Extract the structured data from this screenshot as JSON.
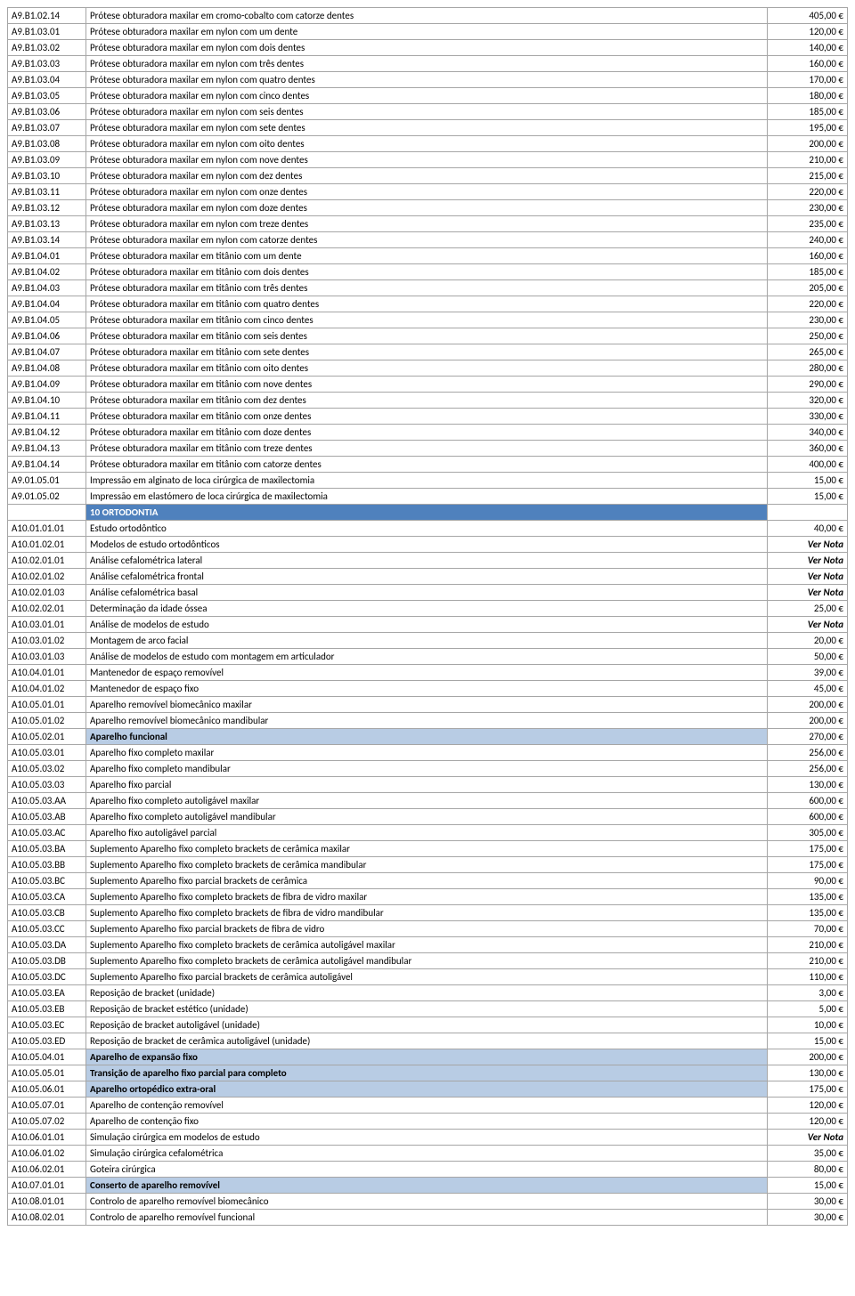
{
  "rows": [
    {
      "code": "A9.B1.02.14",
      "desc": "Prótese obturadora maxilar em cromo-cobalto com catorze dentes",
      "price": "405,00 €"
    },
    {
      "code": "A9.B1.03.01",
      "desc": "Prótese obturadora maxilar em nylon com um dente",
      "price": "120,00 €"
    },
    {
      "code": "A9.B1.03.02",
      "desc": "Prótese obturadora maxilar em nylon com dois dentes",
      "price": "140,00 €"
    },
    {
      "code": "A9.B1.03.03",
      "desc": "Prótese obturadora maxilar em nylon com três dentes",
      "price": "160,00 €"
    },
    {
      "code": "A9.B1.03.04",
      "desc": "Prótese obturadora maxilar em nylon com quatro dentes",
      "price": "170,00 €"
    },
    {
      "code": "A9.B1.03.05",
      "desc": "Prótese obturadora maxilar em nylon com cinco dentes",
      "price": "180,00 €"
    },
    {
      "code": "A9.B1.03.06",
      "desc": "Prótese obturadora maxilar em nylon com seis dentes",
      "price": "185,00 €"
    },
    {
      "code": "A9.B1.03.07",
      "desc": "Prótese obturadora maxilar em nylon com sete dentes",
      "price": "195,00 €"
    },
    {
      "code": "A9.B1.03.08",
      "desc": "Prótese obturadora maxilar em nylon com oito dentes",
      "price": "200,00 €"
    },
    {
      "code": "A9.B1.03.09",
      "desc": "Prótese obturadora maxilar em nylon com nove dentes",
      "price": "210,00 €"
    },
    {
      "code": "A9.B1.03.10",
      "desc": "Prótese obturadora maxilar em nylon com dez dentes",
      "price": "215,00 €"
    },
    {
      "code": "A9.B1.03.11",
      "desc": "Prótese obturadora maxilar em nylon com onze dentes",
      "price": "220,00 €"
    },
    {
      "code": "A9.B1.03.12",
      "desc": "Prótese obturadora maxilar em nylon com doze dentes",
      "price": "230,00 €"
    },
    {
      "code": "A9.B1.03.13",
      "desc": "Prótese obturadora maxilar em nylon com treze dentes",
      "price": "235,00 €"
    },
    {
      "code": "A9.B1.03.14",
      "desc": "Prótese obturadora maxilar em nylon com catorze dentes",
      "price": "240,00 €"
    },
    {
      "code": "A9.B1.04.01",
      "desc": "Prótese obturadora maxilar em titânio com um dente",
      "price": "160,00 €"
    },
    {
      "code": "A9.B1.04.02",
      "desc": "Prótese obturadora maxilar em titânio com dois dentes",
      "price": "185,00 €"
    },
    {
      "code": "A9.B1.04.03",
      "desc": "Prótese obturadora maxilar em titânio com três dentes",
      "price": "205,00 €"
    },
    {
      "code": "A9.B1.04.04",
      "desc": "Prótese obturadora maxilar em titânio com quatro dentes",
      "price": "220,00 €"
    },
    {
      "code": "A9.B1.04.05",
      "desc": "Prótese obturadora maxilar em titânio com cinco dentes",
      "price": "230,00 €"
    },
    {
      "code": "A9.B1.04.06",
      "desc": "Prótese obturadora maxilar em titânio com seis dentes",
      "price": "250,00 €"
    },
    {
      "code": "A9.B1.04.07",
      "desc": "Prótese obturadora maxilar em titânio com sete dentes",
      "price": "265,00 €"
    },
    {
      "code": "A9.B1.04.08",
      "desc": "Prótese obturadora maxilar em titânio com oito dentes",
      "price": "280,00 €"
    },
    {
      "code": "A9.B1.04.09",
      "desc": "Prótese obturadora maxilar em titânio com nove dentes",
      "price": "290,00 €"
    },
    {
      "code": "A9.B1.04.10",
      "desc": "Prótese obturadora maxilar em titânio com dez dentes",
      "price": "320,00 €"
    },
    {
      "code": "A9.B1.04.11",
      "desc": "Prótese obturadora maxilar em titânio com onze dentes",
      "price": "330,00 €"
    },
    {
      "code": "A9.B1.04.12",
      "desc": "Prótese obturadora maxilar em titânio com doze dentes",
      "price": "340,00 €"
    },
    {
      "code": "A9.B1.04.13",
      "desc": "Prótese obturadora maxilar em titânio com treze dentes",
      "price": "360,00 €"
    },
    {
      "code": "A9.B1.04.14",
      "desc": "Prótese obturadora maxilar em titânio com catorze dentes",
      "price": "400,00 €"
    },
    {
      "code": "A9.01.05.01",
      "desc": "Impressão em alginato de loca cirúrgica de maxilectomia",
      "price": "15,00 €"
    },
    {
      "code": "A9.01.05.02",
      "desc": "Impressão em elastómero de loca cirúrgica de maxilectomia",
      "price": "15,00 €"
    },
    {
      "code": "",
      "desc": "10 ORTODONTIA",
      "price": "",
      "type": "section"
    },
    {
      "code": "A10.01.01.01",
      "desc": "Estudo ortodôntico",
      "price": "40,00 €"
    },
    {
      "code": "A10.01.02.01",
      "desc": "Modelos de estudo ortodônticos",
      "price": "Ver Nota",
      "note": true
    },
    {
      "code": "A10.02.01.01",
      "desc": "Análise cefalométrica lateral",
      "price": "Ver Nota",
      "note": true
    },
    {
      "code": "A10.02.01.02",
      "desc": "Análise cefalométrica frontal",
      "price": "Ver Nota",
      "note": true
    },
    {
      "code": "A10.02.01.03",
      "desc": "Análise cefalométrica basal",
      "price": "Ver Nota",
      "note": true
    },
    {
      "code": "A10.02.02.01",
      "desc": "Determinação da idade óssea",
      "price": "25,00 €"
    },
    {
      "code": "A10.03.01.01",
      "desc": "Análise de modelos de estudo",
      "price": "Ver Nota",
      "note": true
    },
    {
      "code": "A10.03.01.02",
      "desc": "Montagem de arco facial",
      "price": "20,00 €"
    },
    {
      "code": "A10.03.01.03",
      "desc": "Análise de modelos de estudo com montagem em articulador",
      "price": "50,00 €"
    },
    {
      "code": "A10.04.01.01",
      "desc": "Mantenedor de espaço removível",
      "price": "39,00 €"
    },
    {
      "code": "A10.04.01.02",
      "desc": "Mantenedor de espaço fixo",
      "price": "45,00 €"
    },
    {
      "code": "A10.05.01.01",
      "desc": "Aparelho removível biomecânico maxilar",
      "price": "200,00 €"
    },
    {
      "code": "A10.05.01.02",
      "desc": "Aparelho removível biomecânico mandibular",
      "price": "200,00 €"
    },
    {
      "code": "A10.05.02.01",
      "desc": "Aparelho funcional",
      "price": "270,00 €",
      "hl": true
    },
    {
      "code": "A10.05.03.01",
      "desc": "Aparelho fixo completo maxilar",
      "price": "256,00 €"
    },
    {
      "code": "A10.05.03.02",
      "desc": "Aparelho fixo completo mandibular",
      "price": "256,00 €"
    },
    {
      "code": "A10.05.03.03",
      "desc": "Aparelho fixo parcial",
      "price": "130,00 €"
    },
    {
      "code": "A10.05.03.AA",
      "desc": "Aparelho fixo completo autoligável maxilar",
      "price": "600,00 €"
    },
    {
      "code": "A10.05.03.AB",
      "desc": "Aparelho fixo completo autoligável mandibular",
      "price": "600,00 €"
    },
    {
      "code": "A10.05.03.AC",
      "desc": "Aparelho fixo autoligável parcial",
      "price": "305,00 €"
    },
    {
      "code": "A10.05.03.BA",
      "desc": "Suplemento Aparelho fixo completo brackets de cerâmica maxilar",
      "price": "175,00 €"
    },
    {
      "code": "A10.05.03.BB",
      "desc": "Suplemento Aparelho fixo completo brackets de cerâmica mandibular",
      "price": "175,00 €"
    },
    {
      "code": "A10.05.03.BC",
      "desc": "Suplemento Aparelho fixo parcial brackets de cerâmica",
      "price": "90,00 €"
    },
    {
      "code": "A10.05.03.CA",
      "desc": "Suplemento Aparelho fixo completo  brackets de fibra de vidro maxilar",
      "price": "135,00 €"
    },
    {
      "code": "A10.05.03.CB",
      "desc": "Suplemento Aparelho fixo completo  brackets de fibra de vidro mandibular",
      "price": "135,00 €"
    },
    {
      "code": "A10.05.03.CC",
      "desc": "Suplemento Aparelho fixo parcial  brackets de fibra de vidro",
      "price": "70,00 €"
    },
    {
      "code": "A10.05.03.DA",
      "desc": "Suplemento Aparelho fixo completo brackets de cerâmica autoligável  maxilar",
      "price": "210,00 €"
    },
    {
      "code": "A10.05.03.DB",
      "desc": "Suplemento Aparelho fixo completo brackets de cerâmica autoligável  mandibular",
      "price": "210,00 €"
    },
    {
      "code": "A10.05.03.DC",
      "desc": "Suplemento Aparelho fixo parcial brackets de cerâmica autoligável",
      "price": "110,00 €"
    },
    {
      "code": "A10.05.03.EA",
      "desc": "Reposição de bracket (unidade)",
      "price": "3,00 €"
    },
    {
      "code": "A10.05.03.EB",
      "desc": "Reposição de bracket estético (unidade)",
      "price": "5,00 €"
    },
    {
      "code": "A10.05.03.EC",
      "desc": "Reposição de bracket autoligável (unidade)",
      "price": "10,00 €"
    },
    {
      "code": "A10.05.03.ED",
      "desc": "Reposição de bracket  de cerâmica autoligável  (unidade)",
      "price": "15,00 €"
    },
    {
      "code": "A10.05.04.01",
      "desc": "Aparelho de expansão fixo",
      "price": "200,00 €",
      "hl": true
    },
    {
      "code": "A10.05.05.01",
      "desc": "Transição de aparelho fixo parcial para completo",
      "price": "130,00 €",
      "hl": true
    },
    {
      "code": "A10.05.06.01",
      "desc": "Aparelho ortopédico extra-oral",
      "price": "175,00 €",
      "hl": true
    },
    {
      "code": "A10.05.07.01",
      "desc": "Aparelho de contenção removível",
      "price": "120,00 €"
    },
    {
      "code": "A10.05.07.02",
      "desc": "Aparelho de contenção fixo",
      "price": "120,00 €"
    },
    {
      "code": "A10.06.01.01",
      "desc": "Simulação cirúrgica em modelos de estudo",
      "price": "Ver Nota",
      "note": true
    },
    {
      "code": "A10.06.01.02",
      "desc": "Simulação cirúrgica cefalométrica",
      "price": "35,00 €"
    },
    {
      "code": "A10.06.02.01",
      "desc": "Goteira cirúrgica",
      "price": "80,00 €"
    },
    {
      "code": "A10.07.01.01",
      "desc": "Conserto de aparelho removível",
      "price": "15,00 €",
      "hl": true
    },
    {
      "code": "A10.08.01.01",
      "desc": "Controlo de aparelho removível biomecânico",
      "price": "30,00 €"
    },
    {
      "code": "A10.08.02.01",
      "desc": "Controlo de aparelho removível funcional",
      "price": "30,00 €"
    }
  ]
}
